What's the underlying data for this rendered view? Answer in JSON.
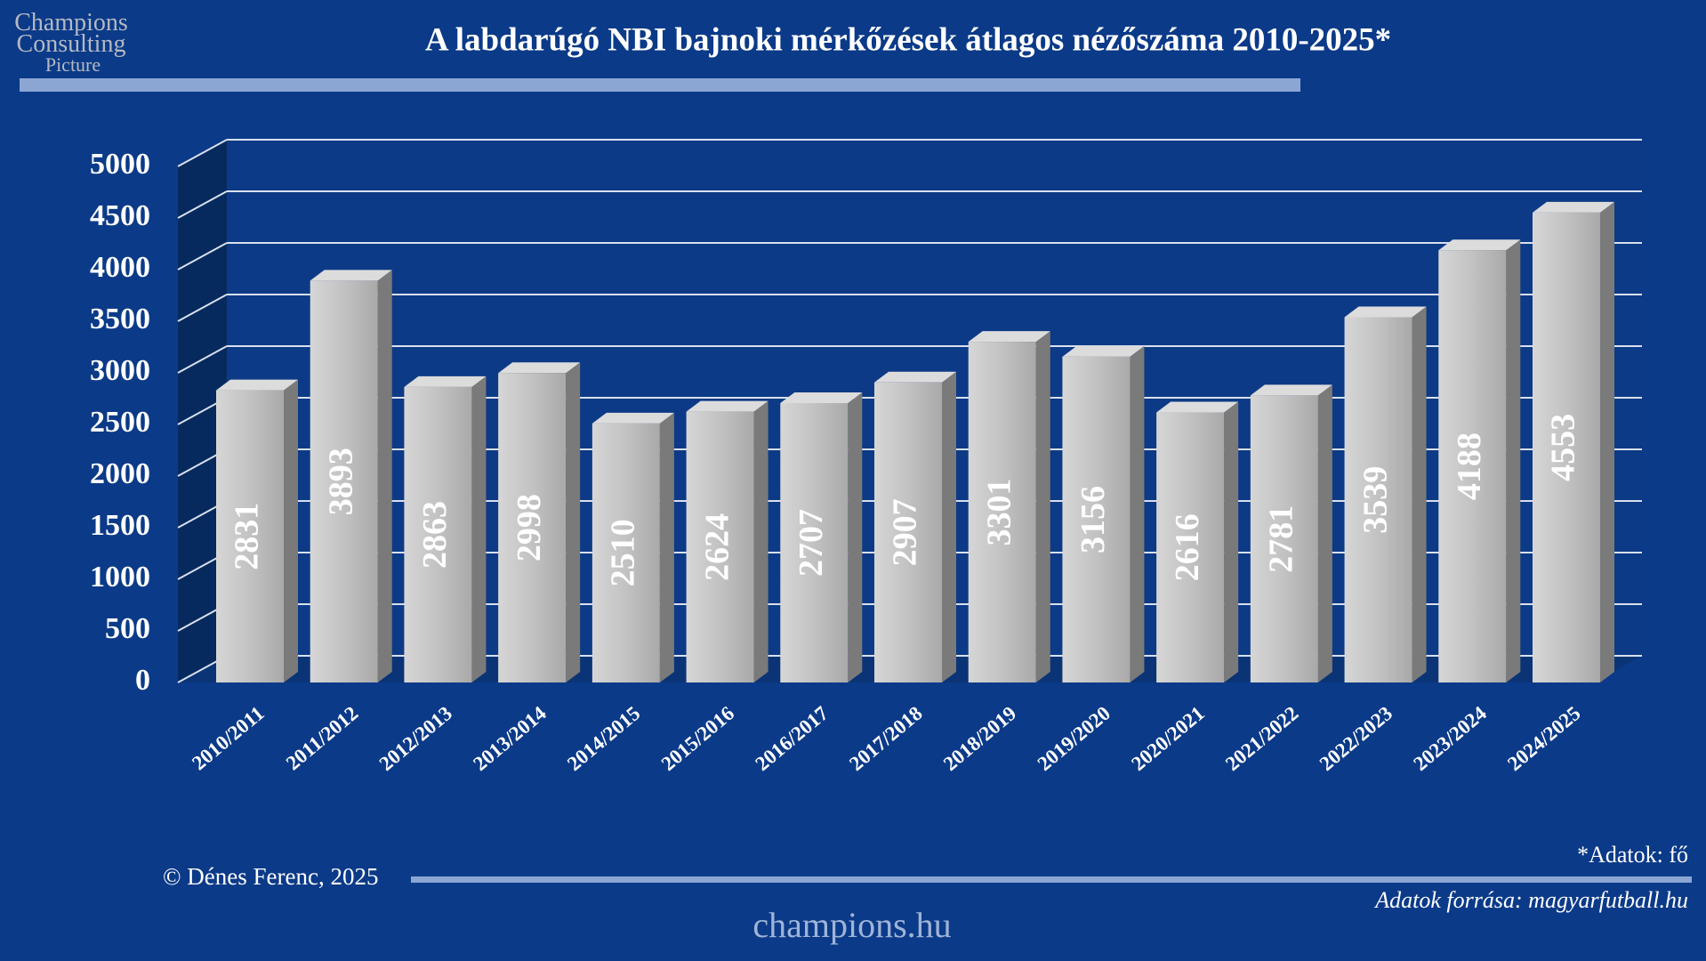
{
  "logo": [
    "Champions",
    "Consulting",
    "Picture"
  ],
  "chart_data": {
    "type": "bar3d",
    "title": "A  labdarúgó NBI bajnoki mérkőzések átlagos nézőszáma 2010-2025*",
    "categories": [
      "2010/2011",
      "2011/2012",
      "2012/2013",
      "2013/2014",
      "2014/2015",
      "2015/2016",
      "2016/2017",
      "2017/2018",
      "2018/2019",
      "2019/2020",
      "2020/2021",
      "2021/2022",
      "2022/2023",
      "2023/2024",
      "2024/2025"
    ],
    "values": [
      2831,
      3893,
      2863,
      2998,
      2510,
      2624,
      2707,
      2907,
      3301,
      3156,
      2616,
      2781,
      3539,
      4188,
      4553
    ],
    "color": "#c2c2c2",
    "ylim": [
      0,
      5000
    ],
    "yticks": [
      0,
      500,
      1000,
      1500,
      2000,
      2500,
      3000,
      3500,
      4000,
      4500,
      5000
    ],
    "grid": true
  },
  "footer": {
    "copyright": "© Dénes Ferenc, 2025",
    "unit_note": "*Adatok: fő",
    "source": "Adatok forrása: magyarfutball.hu",
    "site": "champions.hu"
  }
}
